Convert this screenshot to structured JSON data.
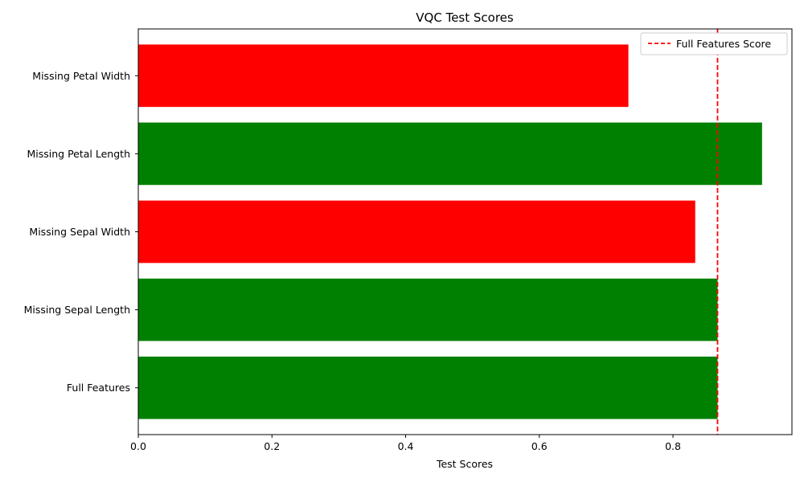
{
  "chart_data": {
    "type": "bar",
    "orientation": "horizontal",
    "title": "VQC Test Scores",
    "xlabel": "Test Scores",
    "ylabel": "",
    "xlim": [
      0,
      0.978
    ],
    "xticks": [
      0.0,
      0.2,
      0.4,
      0.6,
      0.8
    ],
    "xtick_labels": [
      "0.0",
      "0.2",
      "0.4",
      "0.6",
      "0.8"
    ],
    "categories": [
      "Full Features",
      "Missing Sepal Length",
      "Missing Sepal Width",
      "Missing Petal Length",
      "Missing Petal Width"
    ],
    "values": [
      0.8667,
      0.8667,
      0.8333,
      0.9333,
      0.7333
    ],
    "bar_colors": [
      "#008000",
      "#008000",
      "#ff0000",
      "#008000",
      "#ff0000"
    ],
    "reference_line": {
      "label": "Full Features Score",
      "value": 0.8667,
      "color": "#ff0000",
      "style": "dashed"
    },
    "legend": {
      "placement": "top-right",
      "entries": [
        "Full Features Score"
      ]
    },
    "grid": false
  }
}
